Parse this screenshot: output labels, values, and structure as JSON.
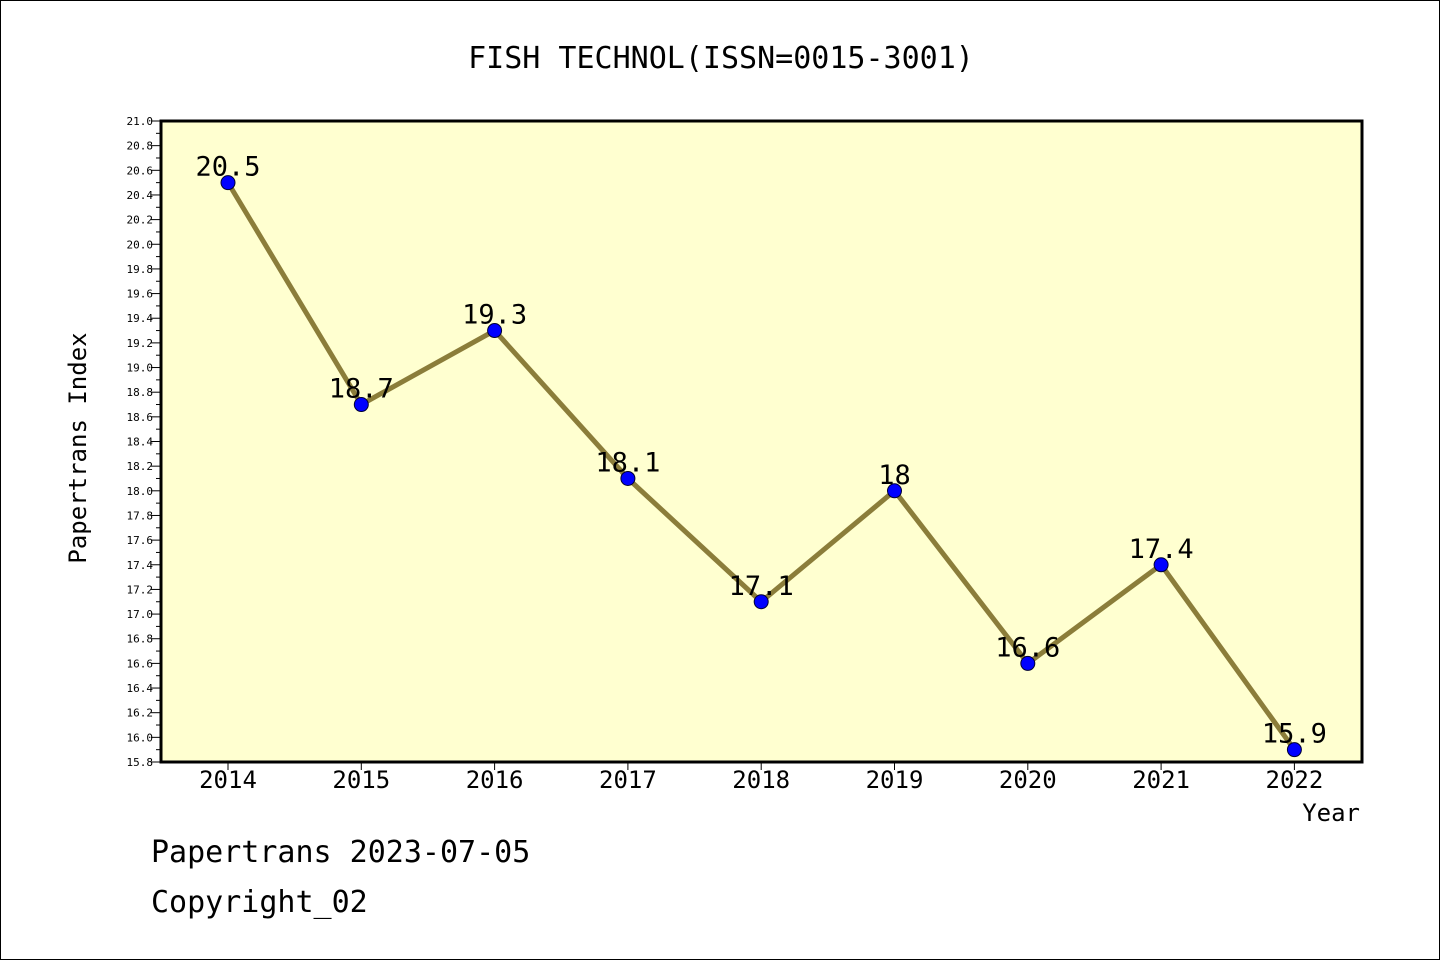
{
  "chart_data": {
    "type": "line",
    "title": "FISH TECHNOL(ISSN=0015-3001)",
    "xlabel": "Year",
    "ylabel": "Papertrans Index",
    "categories": [
      "2014",
      "2015",
      "2016",
      "2017",
      "2018",
      "2019",
      "2020",
      "2021",
      "2022"
    ],
    "values": [
      20.5,
      18.7,
      19.3,
      18.1,
      17.1,
      18,
      16.6,
      17.4,
      15.9
    ],
    "data_labels": [
      "20.5",
      "18.7",
      "19.3",
      "18.1",
      "17.1",
      "18",
      "16.6",
      "17.4",
      "15.9"
    ],
    "ylim": [
      15.8,
      21.0
    ],
    "yticks": [
      "15.8",
      "16.0",
      "16.2",
      "16.4",
      "16.6",
      "16.8",
      "17.0",
      "17.2",
      "17.4",
      "17.6",
      "17.8",
      "18.0",
      "18.2",
      "18.4",
      "18.6",
      "18.8",
      "19.0",
      "19.2",
      "19.4",
      "19.6",
      "19.8",
      "20.0",
      "20.2",
      "20.4",
      "20.6",
      "20.8",
      "21.0"
    ],
    "grid": false,
    "colors": {
      "plot_background": "#ffffd0",
      "line": "#8b7d3a",
      "marker": "#0000ff"
    }
  },
  "footer": {
    "line1": "Papertrans 2023-07-05",
    "line2": "Copyright_02"
  }
}
